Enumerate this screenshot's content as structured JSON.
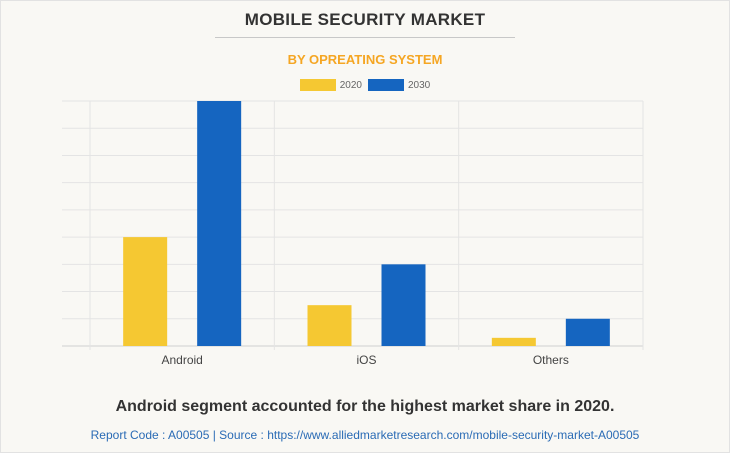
{
  "chart_data": {
    "type": "bar",
    "title": "MOBILE SECURITY MARKET",
    "subtitle": "BY OPREATING SYSTEM",
    "categories": [
      "Android",
      "iOS",
      "Others"
    ],
    "series": [
      {
        "name": "2020",
        "color": "#f5c832",
        "values": [
          4,
          1.5,
          0.3
        ]
      },
      {
        "name": "2030",
        "color": "#1565c0",
        "values": [
          9,
          3,
          1
        ]
      }
    ],
    "xlabel": "",
    "ylabel": "",
    "ylim": [
      0,
      9
    ],
    "grid": true,
    "y_tick_labels_shown": false,
    "legend_position": "top-center"
  },
  "headline": "Android segment accounted for the highest market share in 2020.",
  "source_line": "Report Code : A00505  |  Source : https://www.alliedmarketresearch.com/mobile-security-market-A00505"
}
